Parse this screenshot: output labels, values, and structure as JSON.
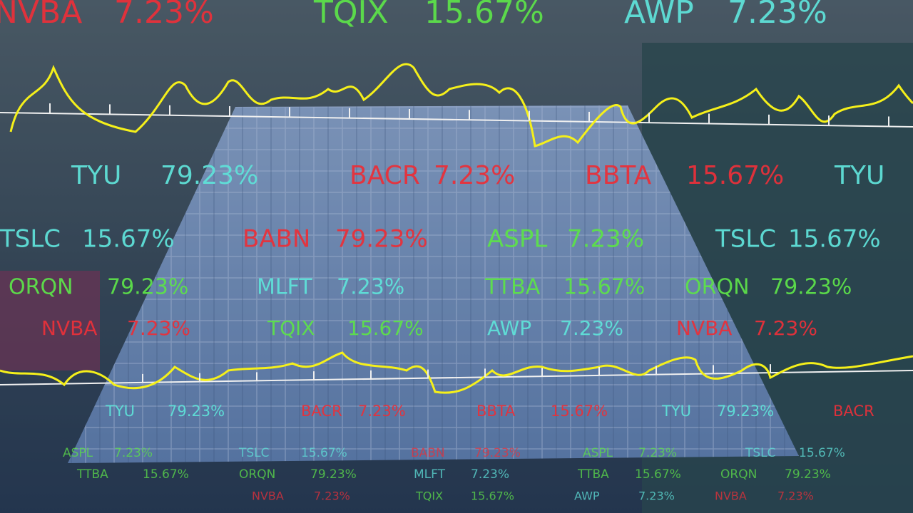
{
  "ticker_rows": [
    {
      "items": [
        {
          "symbol": "NVBA",
          "change": "7.23%",
          "color": "#e8303a"
        },
        {
          "symbol": "TQIX",
          "change": "15.67%",
          "color": "#5de04a"
        },
        {
          "symbol": "AWP",
          "change": "7.23%",
          "color": "#5fe0d8"
        }
      ]
    },
    {
      "items": [
        {
          "symbol": "TYU",
          "change": "79.23%",
          "color": "#5fe0d8"
        },
        {
          "symbol": "BACR",
          "change": "7.23%",
          "color": "#e8303a"
        },
        {
          "symbol": "BBTA",
          "change": "15.67%",
          "color": "#e8303a"
        },
        {
          "symbol": "TYU",
          "color": "#5fe0d8"
        }
      ]
    },
    {
      "items": [
        {
          "symbol": "TSLC",
          "change": "15.67%",
          "color": "#5fe0d8"
        },
        {
          "symbol": "BABN",
          "change": "79.23%",
          "color": "#e8303a"
        },
        {
          "symbol": "ASPL",
          "change": "7.23%",
          "color": "#5de04a"
        },
        {
          "symbol": "TSLC",
          "change": "15.67%",
          "color": "#5fe0d8"
        }
      ]
    },
    {
      "items": [
        {
          "symbol": "ORQN",
          "change": "79.23%",
          "color": "#5de04a"
        },
        {
          "symbol": "MLFT",
          "change": "7.23%",
          "color": "#5fe0d8"
        },
        {
          "symbol": "TTBA",
          "change": "15.67%",
          "color": "#5de04a"
        },
        {
          "symbol": "ORQN",
          "change": "79.23%",
          "color": "#5de04a"
        }
      ]
    },
    {
      "items": [
        {
          "symbol": "NVBA",
          "change": "7.23%",
          "color": "#e8303a"
        },
        {
          "symbol": "TQIX",
          "change": "15.67%",
          "color": "#5de04a"
        },
        {
          "symbol": "AWP",
          "change": "7.23%",
          "color": "#5fe0d8"
        },
        {
          "symbol": "NVBA",
          "change": "7.23%",
          "color": "#e8303a"
        }
      ]
    },
    {
      "items": [
        {
          "symbol": "TYU",
          "change": "79.23%",
          "color": "#5fe0d8"
        },
        {
          "symbol": "BACR",
          "change": "7.23%",
          "color": "#e8303a"
        },
        {
          "symbol": "BBTA",
          "change": "15.67%",
          "color": "#e8303a"
        },
        {
          "symbol": "TYU",
          "change": "79.23%",
          "color": "#5fe0d8"
        },
        {
          "symbol": "BACR",
          "color": "#e8303a"
        }
      ]
    },
    {
      "items": [
        {
          "symbol": "ASPL",
          "change": "7.23%",
          "color": "#5de04a"
        },
        {
          "symbol": "TSLC",
          "change": "15.67%",
          "color": "#5fe0d8"
        },
        {
          "symbol": "BABN",
          "change": "79.23%",
          "color": "#e8303a"
        },
        {
          "symbol": "ASPL",
          "change": "7.23%",
          "color": "#5de04a"
        },
        {
          "symbol": "TSLC",
          "change": "15.67%",
          "color": "#5fe0d8"
        }
      ]
    },
    {
      "items": [
        {
          "symbol": "TTBA",
          "change": "15.67%",
          "color": "#5de04a"
        },
        {
          "symbol": "ORQN",
          "change": "79.23%",
          "color": "#5de04a"
        },
        {
          "symbol": "MLFT",
          "change": "7.23%",
          "color": "#5fe0d8"
        },
        {
          "symbol": "TTBA",
          "change": "15.67%",
          "color": "#5de04a"
        },
        {
          "symbol": "ORQN",
          "change": "79.23%",
          "color": "#5de04a"
        }
      ]
    },
    {
      "items": [
        {
          "symbol": "NVBA",
          "change": "7.23%",
          "color": "#e8303a"
        },
        {
          "symbol": "TQIX",
          "change": "15.67%",
          "color": "#5de04a"
        },
        {
          "symbol": "AWP",
          "change": "7.23%",
          "color": "#5fe0d8"
        },
        {
          "symbol": "NVBA",
          "change": "7.23%",
          "color": "#e8303a"
        }
      ]
    }
  ]
}
